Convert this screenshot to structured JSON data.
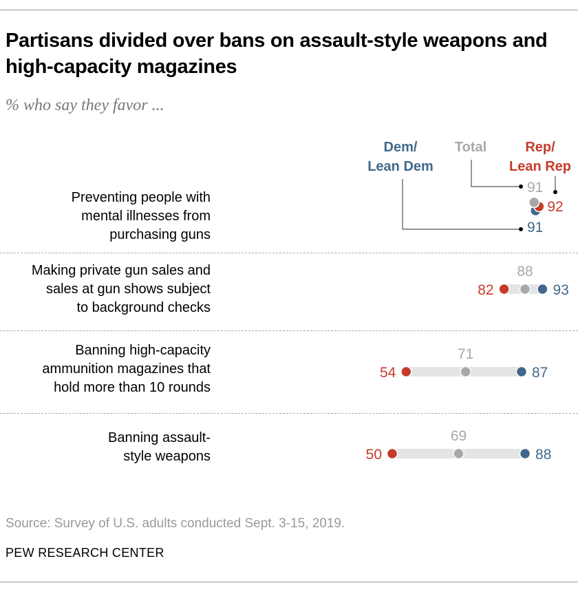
{
  "chart_data": {
    "type": "dot",
    "title": "Partisans divided over bans on assault-style weapons and high-capacity magazines",
    "subtitle": "% who say they favor ...",
    "legend": {
      "dem": "Dem/\nLean Dem",
      "total": "Total",
      "rep": "Rep/\nLean Rep"
    },
    "series_colors": {
      "rep": "#c53b2b",
      "total": "#a7a8aa",
      "dem": "#41688a"
    },
    "categories": [
      "Preventing people with mental illnesses from purchasing guns",
      "Making private gun sales and sales at gun shows subject to background checks",
      "Banning high-capacity ammunition magazines that hold more than 10 rounds",
      "Banning assault-style weapons"
    ],
    "category_lines": [
      [
        "Preventing people with",
        "mental illnesses from",
        "purchasing guns"
      ],
      [
        "Making private gun sales and",
        "sales at gun shows subject",
        "to background checks"
      ],
      [
        "Banning high-capacity",
        "ammunition magazines that",
        "hold more than 10 rounds"
      ],
      [
        "Banning assault-",
        "style weapons"
      ]
    ],
    "series": [
      {
        "name": "Rep/Lean Rep",
        "key": "rep",
        "values": [
          92,
          82,
          54,
          50
        ]
      },
      {
        "name": "Total",
        "key": "total",
        "values": [
          91,
          88,
          71,
          69
        ]
      },
      {
        "name": "Dem/Lean Dem",
        "key": "dem",
        "values": [
          91,
          93,
          87,
          88
        ]
      }
    ]
  },
  "source": "Source: Survey of U.S. adults conducted Sept. 3-15, 2019.",
  "brand": "PEW RESEARCH CENTER"
}
